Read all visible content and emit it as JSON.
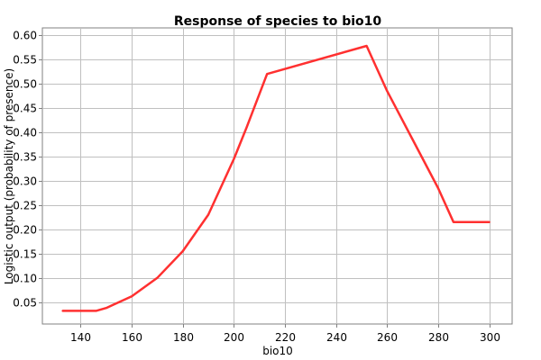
{
  "chart_data": {
    "type": "line",
    "title": "Response of species to bio10",
    "xlabel": "bio10",
    "ylabel": "Logistic output (probability of presence)",
    "xlim": [
      125,
      309
    ],
    "ylim": [
      0.005,
      0.615
    ],
    "x_ticks": [
      140,
      160,
      180,
      200,
      220,
      240,
      260,
      280,
      300
    ],
    "y_ticks": [
      0.05,
      0.1,
      0.15,
      0.2,
      0.25,
      0.3,
      0.35,
      0.4,
      0.45,
      0.5,
      0.55,
      0.6
    ],
    "x_tick_labels": [
      "140",
      "160",
      "180",
      "200",
      "220",
      "240",
      "260",
      "280",
      "300"
    ],
    "y_tick_labels": [
      "0.05",
      "0.10",
      "0.15",
      "0.20",
      "0.25",
      "0.30",
      "0.35",
      "0.40",
      "0.45",
      "0.50",
      "0.55",
      "0.60"
    ],
    "grid": true,
    "line_color": "#ff3030",
    "series": [
      {
        "x": [
          133,
          146,
          150,
          160,
          170,
          180,
          190,
          200,
          205,
          213,
          252,
          260,
          270,
          280,
          286,
          300
        ],
        "y": [
          0.032,
          0.032,
          0.038,
          0.062,
          0.1,
          0.155,
          0.23,
          0.345,
          0.41,
          0.52,
          0.578,
          0.485,
          0.385,
          0.285,
          0.215,
          0.215
        ]
      }
    ]
  }
}
